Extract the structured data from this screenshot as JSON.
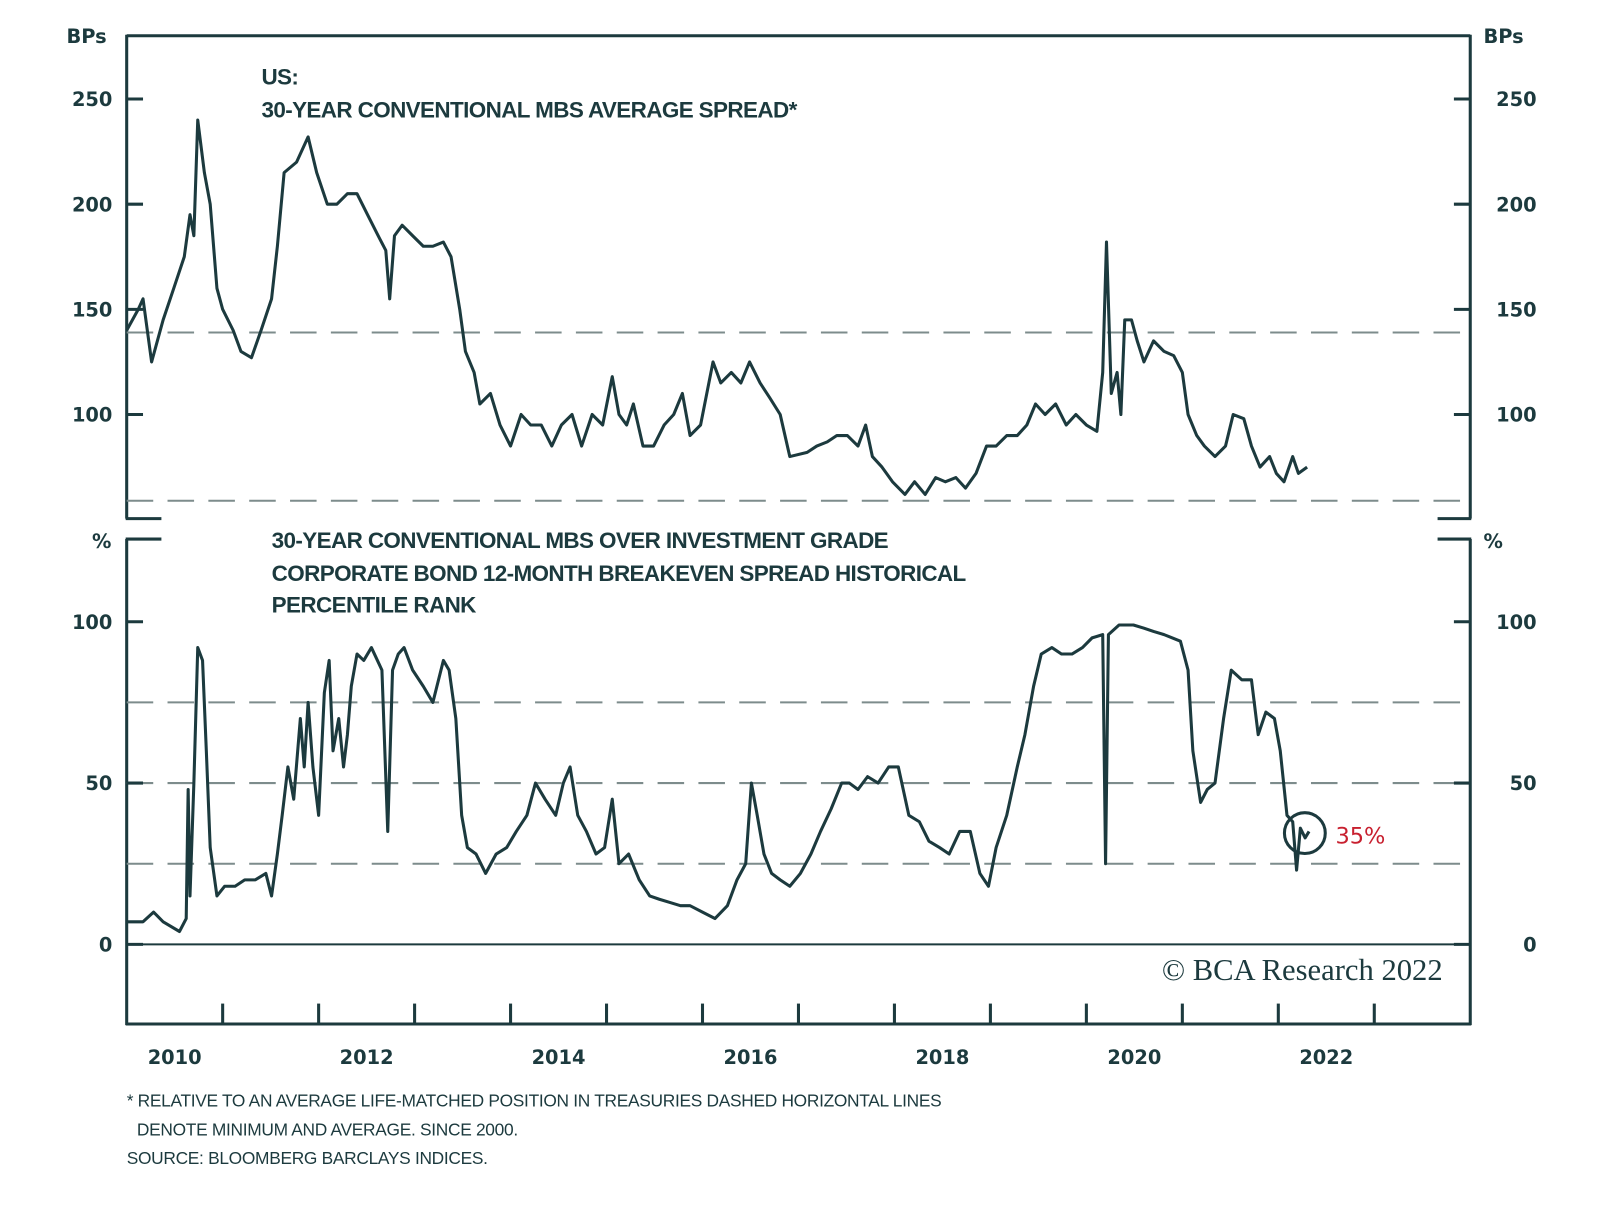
{
  "chart_data": [
    {
      "type": "line",
      "title_line1": "US:",
      "title_line2": "30-YEAR CONVENTIONAL MBS AVERAGE SPREAD*",
      "ylabel_left": "BPs",
      "ylabel_right": "BPs",
      "ylim": [
        50,
        280
      ],
      "yticks": [
        100,
        150,
        200,
        250
      ],
      "xlim": [
        2010,
        2024
      ],
      "reference_lines": [
        {
          "value": 139,
          "label": "average"
        },
        {
          "value": 59,
          "label": "minimum"
        }
      ],
      "series": [
        {
          "name": "30-Year Conventional MBS Average Spread",
          "x": [
            2010.0,
            2010.12,
            2010.17,
            2010.26,
            2010.38,
            2010.49,
            2010.6,
            2010.66,
            2010.7,
            2010.74,
            2010.81,
            2010.87,
            2010.94,
            2011.0,
            2011.11,
            2011.19,
            2011.3,
            2011.4,
            2011.51,
            2011.57,
            2011.64,
            2011.77,
            2011.89,
            2011.98,
            2012.09,
            2012.19,
            2012.3,
            2012.4,
            2012.51,
            2012.62,
            2012.7,
            2012.74,
            2012.79,
            2012.87,
            2012.98,
            2013.09,
            2013.19,
            2013.3,
            2013.38,
            2013.47,
            2013.53,
            2013.62,
            2013.68,
            2013.79,
            2013.89,
            2014.0,
            2014.11,
            2014.21,
            2014.32,
            2014.43,
            2014.53,
            2014.64,
            2014.74,
            2014.85,
            2014.96,
            2015.06,
            2015.13,
            2015.21,
            2015.28,
            2015.38,
            2015.49,
            2015.6,
            2015.7,
            2015.79,
            2015.87,
            2015.98,
            2016.11,
            2016.19,
            2016.3,
            2016.4,
            2016.49,
            2016.6,
            2016.7,
            2016.81,
            2016.91,
            2017.09,
            2017.19,
            2017.3,
            2017.4,
            2017.51,
            2017.62,
            2017.7,
            2017.77,
            2017.87,
            2017.98,
            2018.11,
            2018.21,
            2018.32,
            2018.43,
            2018.53,
            2018.64,
            2018.74,
            2018.85,
            2018.96,
            2019.06,
            2019.17,
            2019.28,
            2019.38,
            2019.47,
            2019.57,
            2019.68,
            2019.79,
            2019.89,
            2020.0,
            2020.11,
            2020.17,
            2020.21,
            2020.26,
            2020.32,
            2020.36,
            2020.4,
            2020.47,
            2020.53,
            2020.6,
            2020.7,
            2020.81,
            2020.91,
            2021.0,
            2021.06,
            2021.15,
            2021.23,
            2021.34,
            2021.45,
            2021.53,
            2021.64,
            2021.72,
            2021.81,
            2021.91,
            2021.98,
            2022.06,
            2022.15,
            2022.21,
            2022.3
          ],
          "y": [
            140,
            150,
            155,
            125,
            145,
            160,
            175,
            195,
            185,
            240,
            215,
            200,
            160,
            150,
            140,
            130,
            127,
            140,
            155,
            180,
            215,
            220,
            232,
            215,
            200,
            200,
            205,
            205,
            195,
            185,
            178,
            155,
            185,
            190,
            185,
            180,
            180,
            182,
            175,
            150,
            130,
            120,
            105,
            110,
            95,
            85,
            100,
            95,
            95,
            85,
            95,
            100,
            85,
            100,
            95,
            118,
            100,
            95,
            105,
            85,
            85,
            95,
            100,
            110,
            90,
            95,
            125,
            115,
            120,
            115,
            125,
            115,
            108,
            100,
            80,
            82,
            85,
            87,
            90,
            90,
            85,
            95,
            80,
            75,
            68,
            62,
            68,
            62,
            70,
            68,
            70,
            65,
            72,
            85,
            85,
            90,
            90,
            95,
            105,
            100,
            105,
            95,
            100,
            95,
            92,
            120,
            182,
            110,
            120,
            100,
            145,
            145,
            135,
            125,
            135,
            130,
            128,
            120,
            100,
            90,
            85,
            80,
            85,
            100,
            98,
            85,
            75,
            80,
            72,
            68,
            80,
            72,
            75
          ]
        }
      ]
    },
    {
      "type": "line",
      "title_lines": [
        "30-YEAR CONVENTIONAL MBS OVER INVESTMENT GRADE",
        "CORPORATE BOND 12-MONTH BREAKEVEN SPREAD HISTORICAL",
        "PERCENTILE RANK"
      ],
      "ylabel_left": "%",
      "ylabel_right": "%",
      "ylim": [
        -25,
        125
      ],
      "yticks": [
        0,
        50,
        100
      ],
      "xlim": [
        2010,
        2024
      ],
      "xticks": [
        "2010",
        "2012",
        "2014",
        "2016",
        "2018",
        "2020",
        "2022"
      ],
      "reference_lines": [
        {
          "value": 75
        },
        {
          "value": 50
        },
        {
          "value": 25
        }
      ],
      "annotation": {
        "text": "35%",
        "x": 2022.28,
        "y": 35,
        "color": "#c8202f"
      },
      "series": [
        {
          "name": "Breakeven Spread Percentile Rank",
          "x": [
            2010.0,
            2010.17,
            2010.28,
            2010.38,
            2010.55,
            2010.62,
            2010.64,
            2010.66,
            2010.7,
            2010.74,
            2010.79,
            2010.83,
            2010.87,
            2010.94,
            2011.02,
            2011.13,
            2011.23,
            2011.34,
            2011.45,
            2011.51,
            2011.57,
            2011.62,
            2011.68,
            2011.74,
            2011.81,
            2011.85,
            2011.89,
            2011.94,
            2012.0,
            2012.06,
            2012.11,
            2012.15,
            2012.21,
            2012.26,
            2012.3,
            2012.34,
            2012.4,
            2012.47,
            2012.55,
            2012.66,
            2012.72,
            2012.77,
            2012.83,
            2012.89,
            2012.98,
            2013.09,
            2013.19,
            2013.3,
            2013.36,
            2013.43,
            2013.49,
            2013.55,
            2013.64,
            2013.74,
            2013.85,
            2013.96,
            2014.06,
            2014.17,
            2014.26,
            2014.36,
            2014.47,
            2014.55,
            2014.62,
            2014.7,
            2014.79,
            2014.89,
            2014.98,
            2015.06,
            2015.13,
            2015.23,
            2015.34,
            2015.45,
            2015.55,
            2015.66,
            2015.77,
            2015.87,
            2016.0,
            2016.13,
            2016.26,
            2016.36,
            2016.45,
            2016.51,
            2016.57,
            2016.64,
            2016.72,
            2016.81,
            2016.91,
            2017.02,
            2017.13,
            2017.23,
            2017.34,
            2017.45,
            2017.53,
            2017.62,
            2017.72,
            2017.83,
            2017.94,
            2018.04,
            2018.15,
            2018.26,
            2018.36,
            2018.47,
            2018.57,
            2018.68,
            2018.79,
            2018.89,
            2018.98,
            2019.06,
            2019.17,
            2019.28,
            2019.36,
            2019.45,
            2019.53,
            2019.64,
            2019.74,
            2019.85,
            2019.96,
            2020.06,
            2020.17,
            2020.2,
            2020.23,
            2020.34,
            2020.49,
            2020.6,
            2020.7,
            2020.81,
            2020.98,
            2021.06,
            2021.11,
            2021.19,
            2021.26,
            2021.34,
            2021.43,
            2021.51,
            2021.62,
            2021.72,
            2021.79,
            2021.87,
            2021.96,
            2022.02,
            2022.09,
            2022.15,
            2022.19,
            2022.23,
            2022.28,
            2022.32
          ],
          "y": [
            7,
            7,
            10,
            7,
            4,
            8,
            48,
            15,
            50,
            92,
            88,
            60,
            30,
            15,
            18,
            18,
            20,
            20,
            22,
            15,
            28,
            40,
            55,
            45,
            70,
            55,
            75,
            55,
            40,
            78,
            88,
            60,
            70,
            55,
            65,
            80,
            90,
            88,
            92,
            85,
            35,
            85,
            90,
            92,
            85,
            80,
            75,
            88,
            85,
            70,
            40,
            30,
            28,
            22,
            28,
            30,
            35,
            40,
            50,
            45,
            40,
            50,
            55,
            40,
            35,
            28,
            30,
            45,
            25,
            28,
            20,
            15,
            14,
            13,
            12,
            12,
            10,
            8,
            12,
            20,
            25,
            50,
            40,
            28,
            22,
            20,
            18,
            22,
            28,
            35,
            42,
            50,
            50,
            48,
            52,
            50,
            55,
            55,
            40,
            38,
            32,
            30,
            28,
            35,
            35,
            22,
            18,
            30,
            40,
            55,
            65,
            80,
            90,
            92,
            90,
            90,
            92,
            95,
            96,
            25,
            96,
            99,
            99,
            98,
            97,
            96,
            94,
            85,
            60,
            44,
            48,
            50,
            70,
            85,
            82,
            82,
            65,
            72,
            70,
            60,
            40,
            38,
            23,
            36,
            33,
            35
          ]
        }
      ]
    }
  ],
  "copyright": "© BCA Research 2022",
  "footnotes": [
    "* RELATIVE TO AN AVERAGE LIFE-MATCHED POSITION IN TREASURIES DASHED HORIZONTAL LINES",
    "DENOTE MINIMUM AND AVERAGE. SINCE 2000.",
    "SOURCE: BLOOMBERG BARCLAYS INDICES."
  ],
  "colors": {
    "line": "#1c3a3e",
    "dash": "#7d8c8c",
    "accent": "#c8202f"
  }
}
